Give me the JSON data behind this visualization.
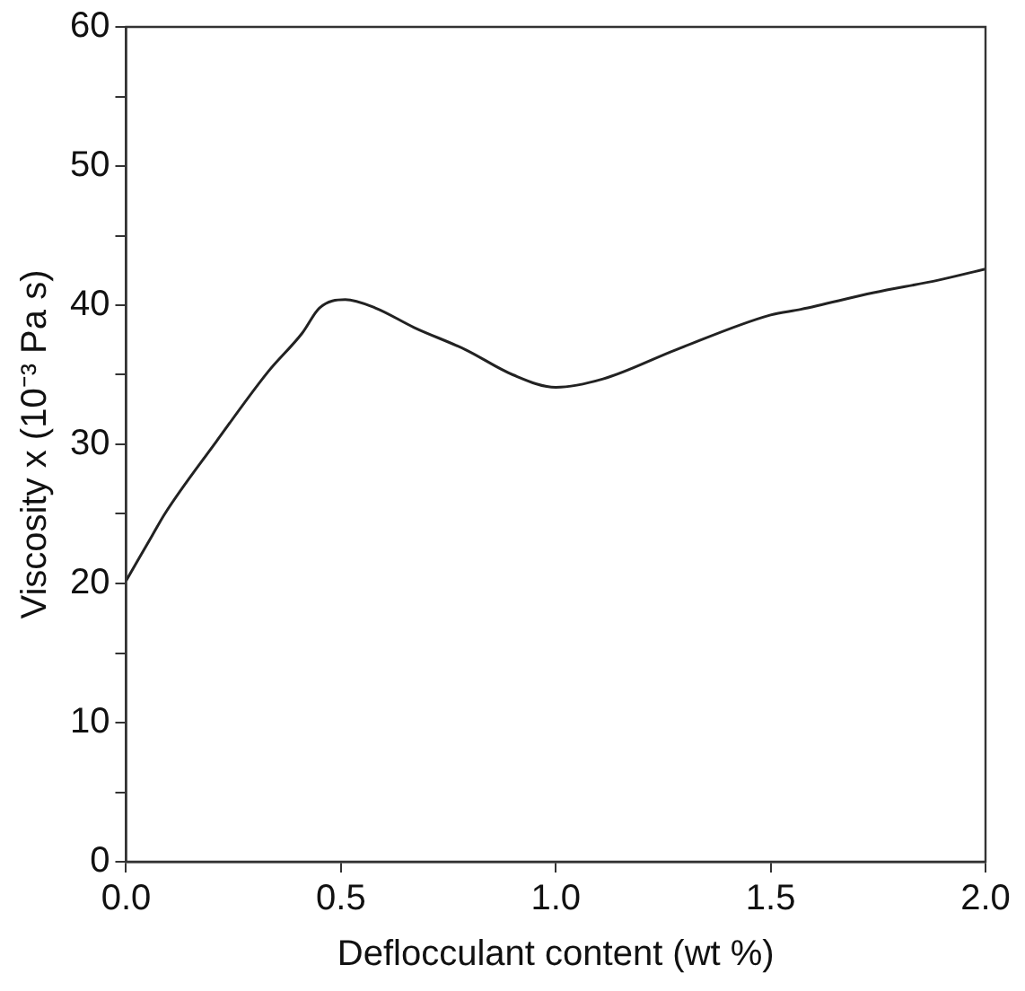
{
  "chart_data": {
    "type": "line",
    "xlabel": "Deflocculant content (wt %)",
    "ylabel": "Viscosity x (10⁻³ Pa s)",
    "series": [
      {
        "color": "#222222",
        "x": [
          0,
          0.06,
          0.09,
          0.21,
          0.33,
          0.41,
          0.45,
          0.51,
          0.58,
          0.67,
          0.79,
          0.9,
          1.0,
          1.11,
          1.28,
          1.5,
          1.57,
          1.74,
          1.89,
          2.0
        ],
        "values": [
          20.2,
          23.4,
          25.0,
          30.2,
          35.2,
          38.0,
          39.8,
          40.4,
          39.8,
          38.4,
          36.8,
          35.0,
          34.1,
          34.7,
          36.8,
          39.3,
          39.7,
          40.9,
          41.8,
          42.6
        ]
      }
    ],
    "xlim": [
      0,
      2
    ],
    "ylim": [
      0,
      60
    ],
    "xticks": [
      {
        "value": 0,
        "label": "0.0"
      },
      0.5,
      {
        "value": 1,
        "label": "1.0"
      },
      1.5,
      {
        "value": 2,
        "label": "2.0"
      }
    ],
    "yticks": [
      0,
      {
        "value": 5,
        "label": null
      },
      10,
      {
        "value": 15,
        "label": null
      },
      20,
      {
        "value": 25,
        "label": null
      },
      30,
      {
        "value": 35,
        "label": null
      },
      40,
      {
        "value": 45,
        "label": null
      },
      50,
      {
        "value": 55,
        "label": null
      },
      60
    ],
    "grid": false,
    "legend": false,
    "marker": "none",
    "line_style": "solid"
  }
}
